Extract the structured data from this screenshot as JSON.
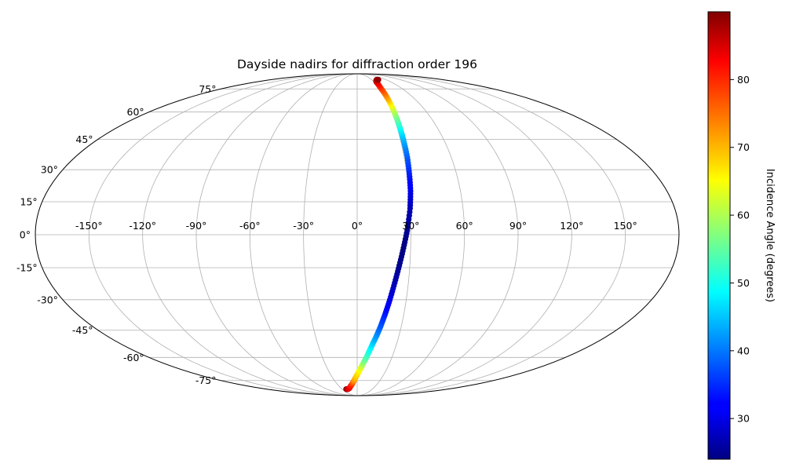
{
  "chart_data": {
    "type": "scatter",
    "projection": "mollweide",
    "title": "Dayside nadirs for diffraction order 196",
    "xlabel": "",
    "ylabel": "",
    "grid": true,
    "longitude_ticks": [
      "-150°",
      "-120°",
      "-90°",
      "-60°",
      "-30°",
      "0°",
      "30°",
      "60°",
      "90°",
      "120°",
      "150°"
    ],
    "latitude_ticks": [
      "75°",
      "60°",
      "45°",
      "30°",
      "15°",
      "0°",
      "-15°",
      "-30°",
      "-45°",
      "-60°",
      "-75°"
    ],
    "xlim": [
      -180,
      180
    ],
    "ylim": [
      -90,
      90
    ],
    "colormap": "jet",
    "colorbar": {
      "label": "Incidence Angle (degrees)",
      "range": [
        24,
        90
      ],
      "ticks": [
        "30",
        "40",
        "50",
        "60",
        "70",
        "80"
      ]
    },
    "series": [
      {
        "x": [
          -22,
          -20,
          -18,
          -16,
          -14,
          -12,
          -10,
          -8,
          -6,
          -4,
          -2,
          0,
          2,
          4,
          6,
          8,
          10,
          12,
          14,
          16,
          18,
          20,
          22,
          24,
          26,
          28,
          30,
          31,
          31.5,
          32,
          32,
          32,
          32,
          32,
          32,
          32,
          32,
          33,
          34,
          36,
          38,
          40,
          42,
          44
        ],
        "y": [
          -82,
          -82,
          -82,
          -81.5,
          -81,
          -80,
          -79,
          -78,
          -76.5,
          -75,
          -73,
          -71,
          -68.5,
          -66,
          -63,
          -60,
          -56,
          -52,
          -48,
          -43,
          -37,
          -30,
          -22,
          -14,
          -6,
          2,
          12,
          20,
          28,
          36,
          44,
          50,
          56,
          62,
          68,
          72,
          76,
          78.5,
          80.5,
          81.5,
          82,
          82.5,
          82.5,
          82.5
        ],
        "values": [
          89,
          88,
          86,
          85,
          84,
          83,
          81,
          80,
          77,
          73,
          70,
          68,
          66,
          63,
          58,
          54,
          50,
          46,
          42,
          38,
          34,
          30,
          27,
          25,
          24,
          25,
          27,
          30,
          34,
          38,
          43,
          48,
          55,
          62,
          70,
          75,
          79,
          82,
          84,
          85,
          86,
          87,
          88,
          89
        ]
      }
    ]
  }
}
